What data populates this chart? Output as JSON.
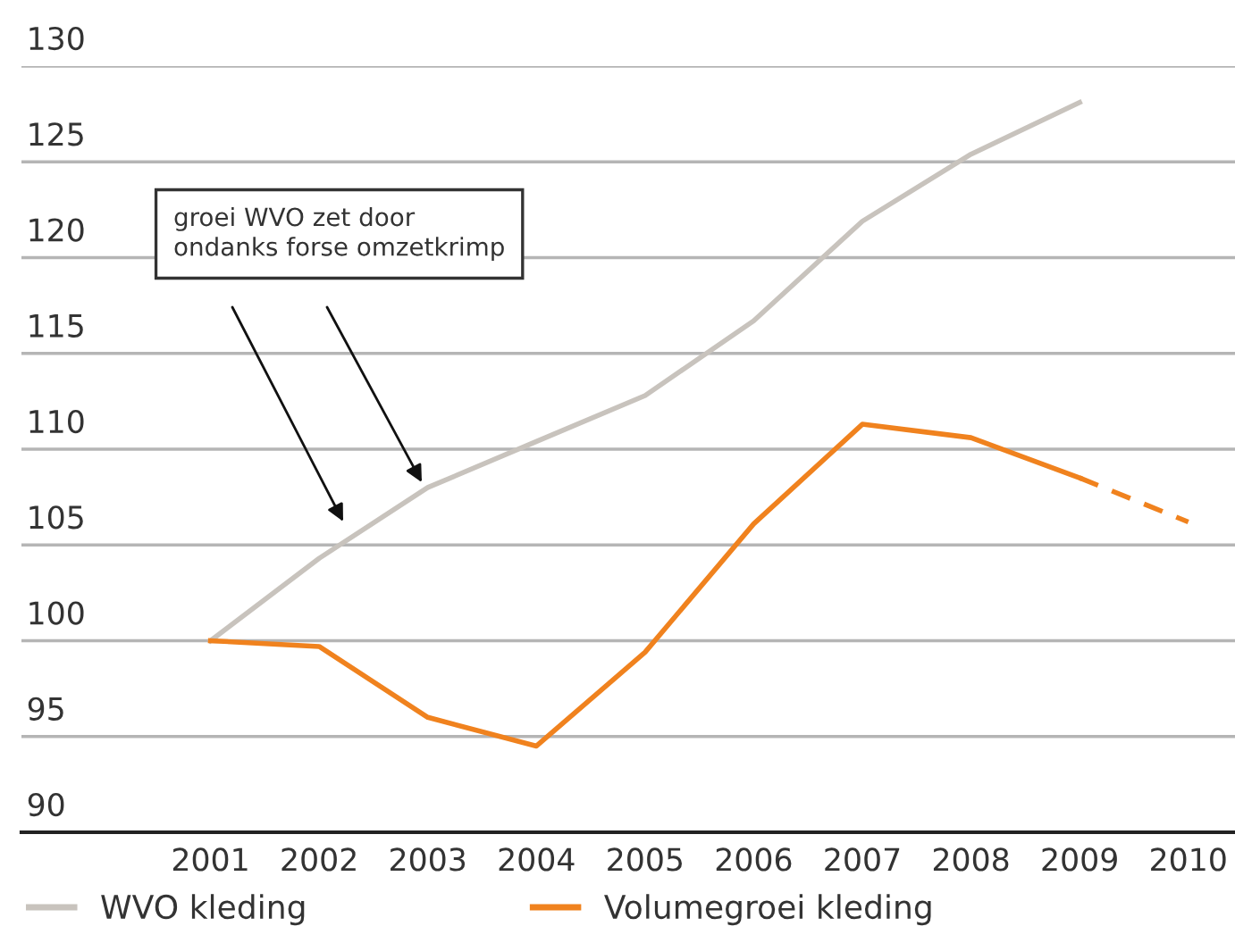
{
  "chart_data": {
    "type": "line",
    "x": [
      2001,
      2002,
      2003,
      2004,
      2005,
      2006,
      2007,
      2008,
      2009
    ],
    "series": [
      {
        "name": "WVO kleding",
        "color": "#c8c3bd",
        "values": [
          100,
          104.3,
          108,
          110.4,
          112.8,
          116.7,
          121.9,
          125.4,
          128.1
        ]
      },
      {
        "name": "Volumegroei kleding",
        "color": "#f0821e",
        "values": [
          100,
          99.7,
          96,
          94.5,
          99.4,
          106.1,
          111.3,
          110.6,
          108.5
        ]
      },
      {
        "color": "#f0821e",
        "x": [
          2009,
          2010
        ],
        "values": [
          108.5,
          106.2
        ],
        "line_style": "dashed"
      }
    ],
    "xlim": [
      1999.26,
      2010.43
    ],
    "xticks": [
      2001,
      2002,
      2003,
      2004,
      2005,
      2006,
      2007,
      2008,
      2009,
      2010
    ],
    "ylim": [
      90,
      130
    ],
    "yticks": [
      90,
      95,
      100,
      105,
      110,
      115,
      120,
      125,
      130
    ],
    "grid": "y",
    "legend": "bottom",
    "marker": "none",
    "line_style": "solid",
    "annotations": [
      "groei WVO zet door\nondanks forse omzetkrimp"
    ]
  }
}
